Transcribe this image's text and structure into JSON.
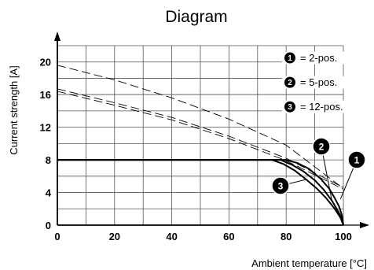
{
  "chart_data": {
    "type": "line",
    "title": "Diagram",
    "xlabel": "Ambient temperature [°C]",
    "ylabel": "Current strength [A]",
    "xlim": [
      0,
      100
    ],
    "ylim": [
      0,
      22
    ],
    "x_ticks": [
      "0",
      "20",
      "40",
      "60",
      "80",
      "100"
    ],
    "y_ticks": [
      "0",
      "4",
      "8",
      "12",
      "16",
      "20"
    ],
    "legend": [
      {
        "marker": "1",
        "label": "= 2-pos."
      },
      {
        "marker": "2",
        "label": "= 5-pos."
      },
      {
        "marker": "3",
        "label": "= 12-pos."
      }
    ],
    "series": [
      {
        "marker": "1",
        "style": "solid",
        "x": [
          0,
          80,
          84,
          88,
          92,
          95,
          97,
          98.5,
          99.5,
          100
        ],
        "y": [
          8,
          8,
          7.6,
          6.9,
          5.7,
          4.5,
          3.3,
          2.3,
          1.2,
          0
        ]
      },
      {
        "marker": "2",
        "style": "solid",
        "x": [
          0,
          78,
          82,
          86,
          90,
          93,
          96,
          98,
          99.5,
          100
        ],
        "y": [
          8,
          8,
          7.4,
          6.6,
          5.5,
          4.4,
          3.0,
          1.8,
          0.8,
          0
        ]
      },
      {
        "marker": "3",
        "style": "solid",
        "x": [
          0,
          75,
          79,
          83,
          87,
          91,
          94,
          97,
          99,
          100
        ],
        "y": [
          8,
          8,
          7.5,
          6.7,
          5.6,
          4.4,
          3.3,
          2.0,
          0.9,
          0
        ]
      },
      {
        "marker": "1",
        "style": "dashed",
        "x": [
          0,
          20,
          40,
          60,
          80,
          100
        ],
        "y": [
          19.6,
          17.8,
          15.6,
          13.0,
          9.8,
          4.5
        ]
      },
      {
        "marker": "2",
        "style": "dashed",
        "x": [
          0,
          20,
          40,
          60,
          80,
          100
        ],
        "y": [
          16.7,
          15.0,
          13.2,
          10.9,
          8.2,
          4.6
        ]
      },
      {
        "marker": "3",
        "style": "dashed",
        "x": [
          0,
          20,
          40,
          60,
          80,
          100
        ],
        "y": [
          16.4,
          14.7,
          12.9,
          10.6,
          7.9,
          4.4
        ]
      }
    ]
  }
}
